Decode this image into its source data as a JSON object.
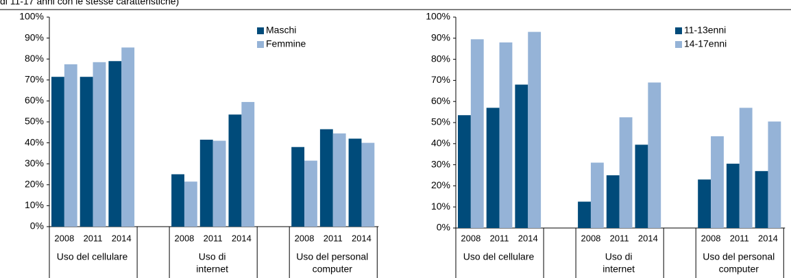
{
  "caption": "di 11-17 anni con le stesse caratteristiche)",
  "chart_data": [
    {
      "type": "bar",
      "groups": [
        [
          "Uso del cellulare"
        ],
        [
          "Uso di",
          "internet"
        ],
        [
          "Uso del personal",
          "computer"
        ]
      ],
      "categories": [
        "2008",
        "2011",
        "2014",
        "2008",
        "2011",
        "2014",
        "2008",
        "2011",
        "2014"
      ],
      "series": [
        {
          "name": "Maschi",
          "color": "#004b7a",
          "values": [
            71.5,
            71.5,
            79,
            25,
            41.5,
            53.5,
            38,
            46.5,
            42
          ]
        },
        {
          "name": "Femmine",
          "color": "#95b3d7",
          "values": [
            77.5,
            78.5,
            85.5,
            21.5,
            41,
            59.5,
            31.5,
            44.5,
            40
          ]
        }
      ],
      "ylim": [
        0,
        100
      ],
      "yticks": [
        {
          "value": 0,
          "label": "0%"
        },
        {
          "value": 10,
          "label": "10%"
        },
        {
          "value": 20,
          "label": "20%"
        },
        {
          "value": 30,
          "label": "30%"
        },
        {
          "value": 40,
          "label": "40%"
        },
        {
          "value": 50,
          "label": "50%"
        },
        {
          "value": 60,
          "label": "60%"
        },
        {
          "value": 70,
          "label": "70%"
        },
        {
          "value": 80,
          "label": "80%"
        },
        {
          "value": 90,
          "label": "90%"
        },
        {
          "value": 100,
          "label": "100%"
        }
      ],
      "legend": "top-right"
    },
    {
      "type": "bar",
      "groups": [
        [
          "Uso del cellulare"
        ],
        [
          "Uso di",
          "internet"
        ],
        [
          "Uso del personal",
          "computer"
        ]
      ],
      "categories": [
        "2008",
        "2011",
        "2014",
        "2008",
        "2011",
        "2014",
        "2008",
        "2011",
        "2014"
      ],
      "series": [
        {
          "name": "11-13enni",
          "color": "#004b7a",
          "values": [
            53.5,
            57,
            68,
            12.5,
            25,
            39.5,
            23,
            30.5,
            27
          ]
        },
        {
          "name": "14-17enni",
          "color": "#95b3d7",
          "values": [
            89.5,
            88,
            93,
            31,
            52.5,
            69,
            43.5,
            57,
            50.5
          ]
        }
      ],
      "ylim": [
        0,
        100
      ],
      "yticks": [
        {
          "value": 0,
          "label": "0%"
        },
        {
          "value": 10,
          "label": "10%"
        },
        {
          "value": 20,
          "label": "20%"
        },
        {
          "value": 30,
          "label": "30%"
        },
        {
          "value": 40,
          "label": "40%"
        },
        {
          "value": 50,
          "label": "50%"
        },
        {
          "value": 60,
          "label": "60%"
        },
        {
          "value": 70,
          "label": "70%"
        },
        {
          "value": 80,
          "label": "80%"
        },
        {
          "value": 90,
          "label": "90%"
        },
        {
          "value": 100,
          "label": "100%"
        }
      ],
      "legend": "top-right"
    }
  ]
}
